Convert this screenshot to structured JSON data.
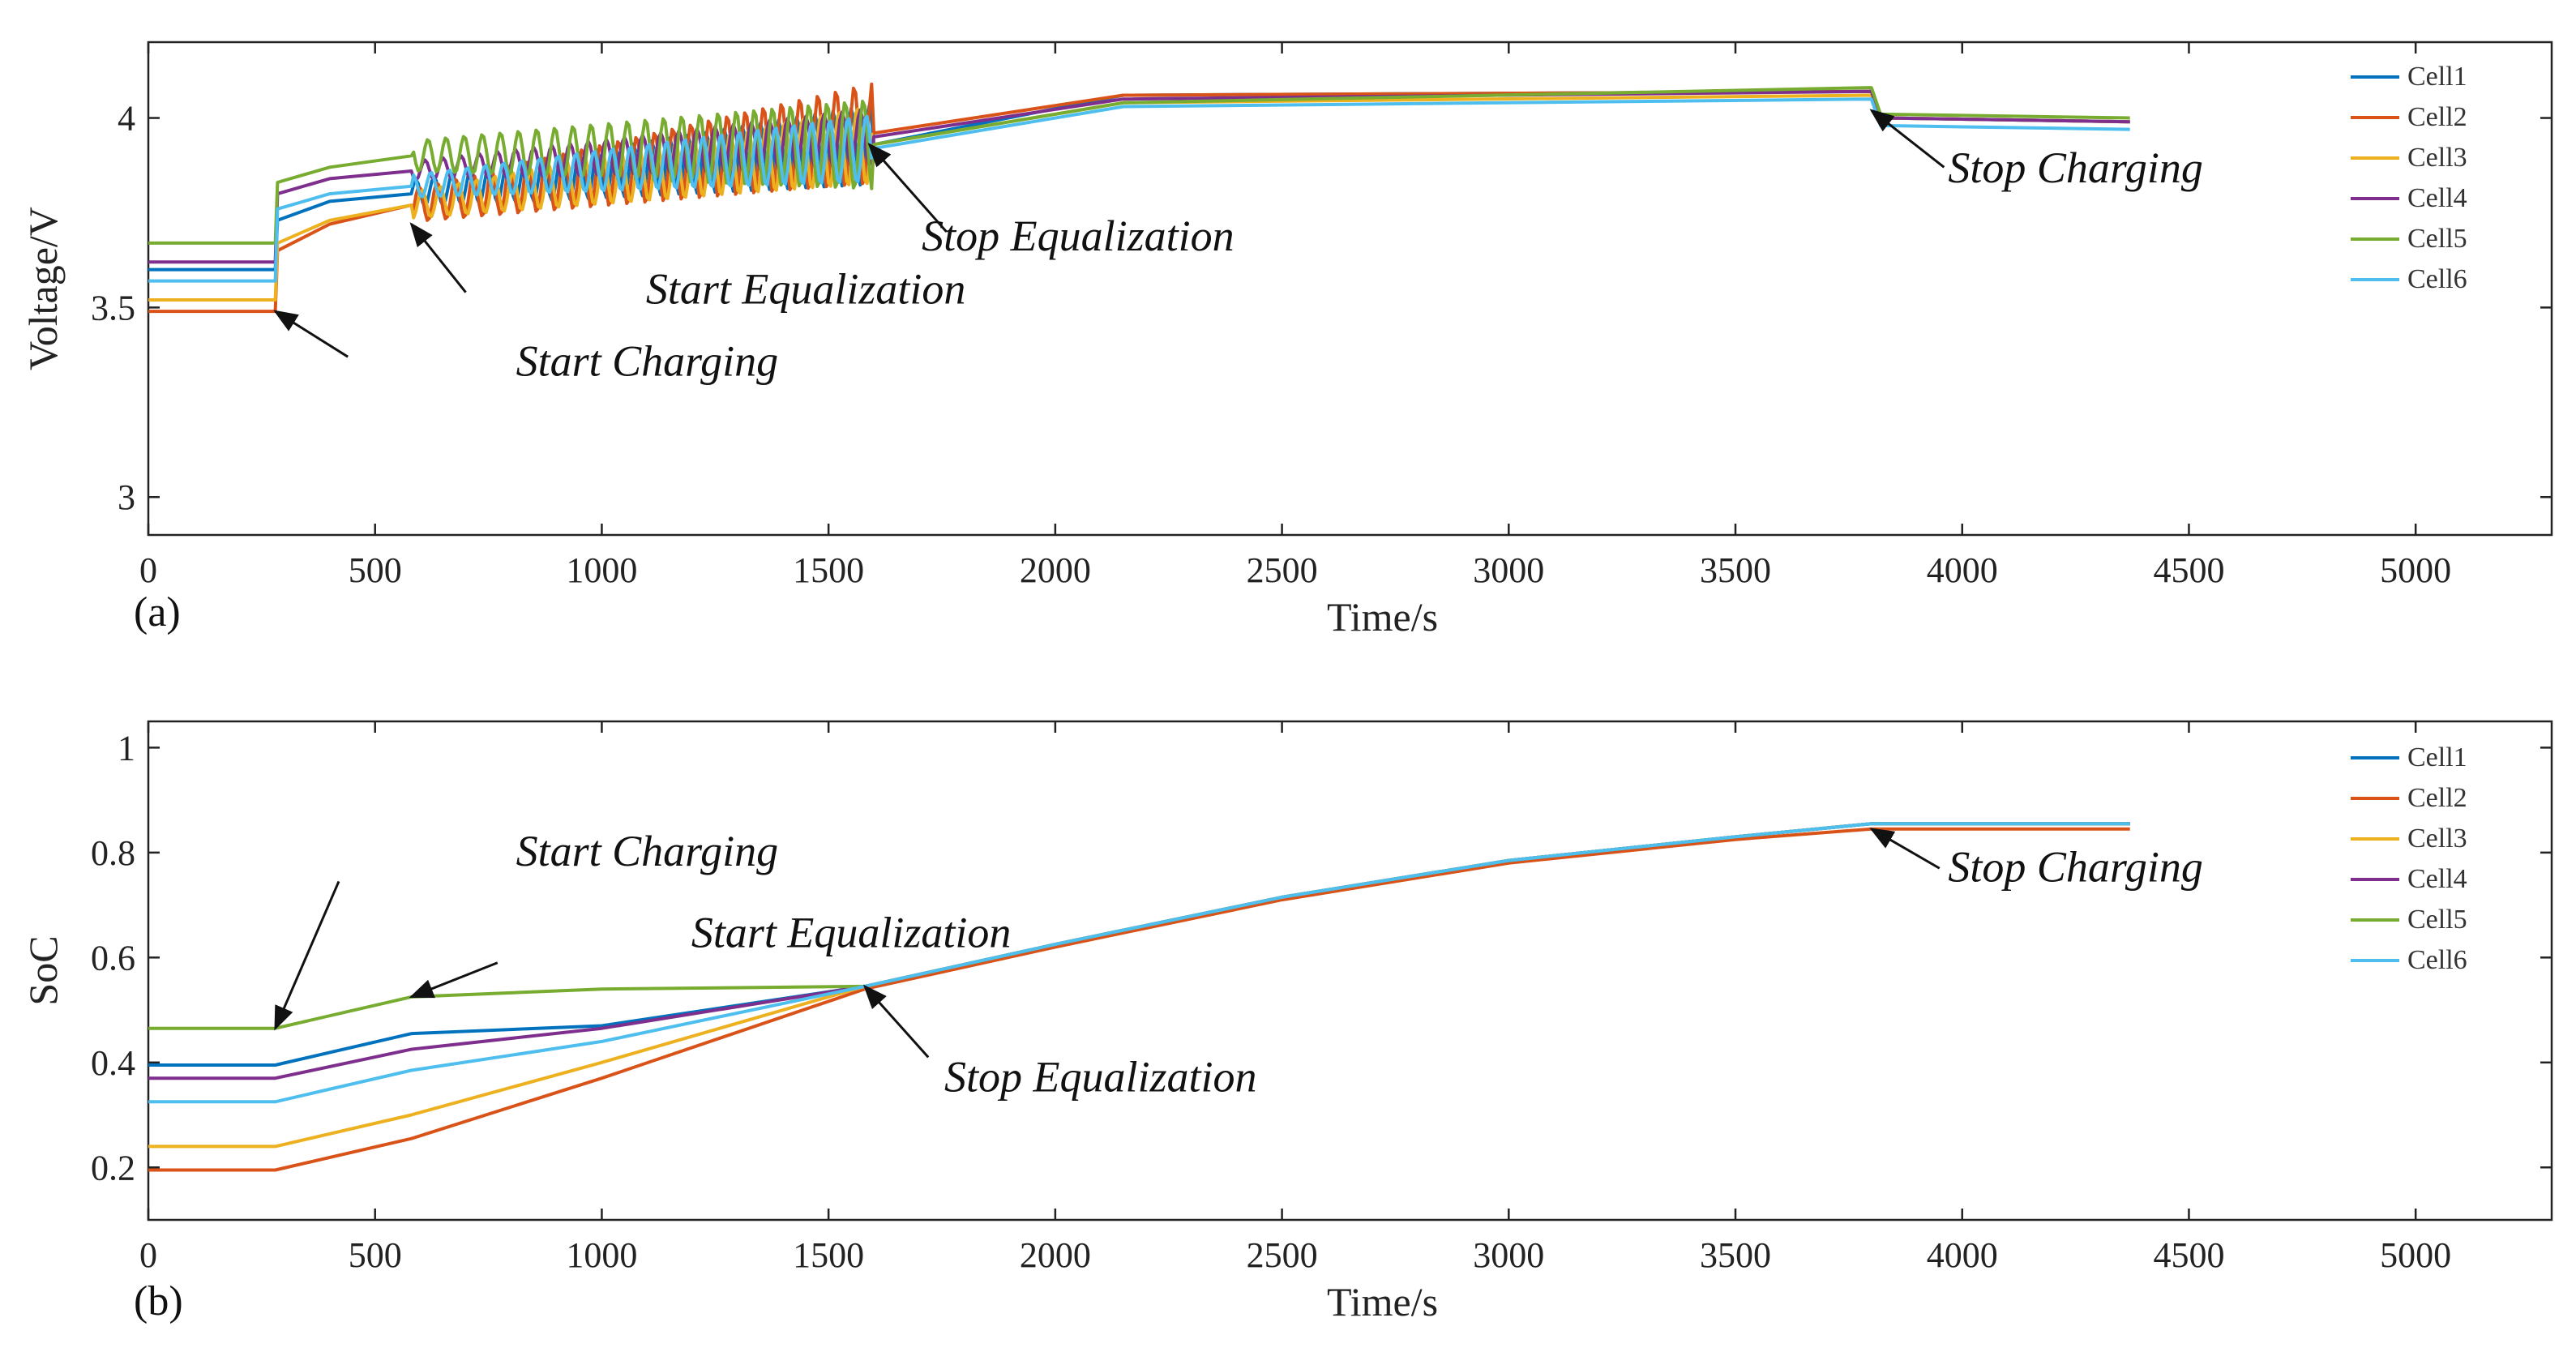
{
  "chart_data": [
    {
      "type": "line",
      "panel_label": "(a)",
      "xlabel": "Time/s",
      "ylabel": "Voltage/V",
      "xlim": [
        0,
        5300
      ],
      "ylim": [
        2.9,
        4.2
      ],
      "xticks": [
        0,
        500,
        1000,
        1500,
        2000,
        2500,
        3000,
        3500,
        4000,
        4500,
        5000
      ],
      "yticks": [
        3,
        3.5,
        4
      ],
      "ytick_labels": [
        "3",
        "3.5",
        "4"
      ],
      "legend": [
        "Cell1",
        "Cell2",
        "Cell3",
        "Cell4",
        "Cell5",
        "Cell6"
      ],
      "series": [
        {
          "name": "Cell1",
          "color": "#0072BD",
          "x": [
            0,
            280,
            285,
            400,
            580,
            1600,
            2150,
            3800,
            3820,
            4370
          ],
          "y": [
            3.6,
            3.6,
            3.73,
            3.78,
            3.8,
            3.93,
            4.06,
            4.07,
            4.0,
            3.99
          ],
          "osc": {
            "start": 580,
            "end": 1600,
            "amp": 0.07,
            "period": 40
          }
        },
        {
          "name": "Cell2",
          "color": "#D95319",
          "x": [
            0,
            280,
            285,
            400,
            580,
            1600,
            2150,
            3800,
            3820,
            4370
          ],
          "y": [
            3.49,
            3.49,
            3.65,
            3.72,
            3.77,
            3.96,
            4.06,
            4.07,
            4.0,
            3.99
          ],
          "osc": {
            "start": 580,
            "end": 1600,
            "amp": 0.09,
            "period": 40
          }
        },
        {
          "name": "Cell3",
          "color": "#EDB120",
          "x": [
            0,
            280,
            285,
            400,
            580,
            1600,
            2150,
            3800,
            3820,
            4370
          ],
          "y": [
            3.52,
            3.52,
            3.67,
            3.73,
            3.77,
            3.93,
            4.04,
            4.06,
            4.0,
            3.99
          ],
          "osc": {
            "start": 580,
            "end": 1600,
            "amp": 0.07,
            "period": 40
          }
        },
        {
          "name": "Cell4",
          "color": "#7E2F8E",
          "x": [
            0,
            280,
            285,
            400,
            580,
            1600,
            2150,
            3800,
            3820,
            4370
          ],
          "y": [
            3.62,
            3.62,
            3.8,
            3.84,
            3.86,
            3.95,
            4.05,
            4.07,
            4.0,
            3.99
          ],
          "osc": {
            "start": 580,
            "end": 1600,
            "amp": 0.05,
            "period": 40
          }
        },
        {
          "name": "Cell5",
          "color": "#77AC30",
          "x": [
            0,
            280,
            285,
            400,
            580,
            1600,
            2150,
            3800,
            3820,
            4370
          ],
          "y": [
            3.67,
            3.67,
            3.83,
            3.87,
            3.9,
            3.93,
            4.04,
            4.08,
            4.01,
            4.0
          ],
          "osc": {
            "start": 580,
            "end": 1600,
            "amp": 0.08,
            "period": 40
          }
        },
        {
          "name": "Cell6",
          "color": "#4DBEEE",
          "x": [
            0,
            280,
            285,
            400,
            580,
            1600,
            2150,
            3800,
            3820,
            4370
          ],
          "y": [
            3.57,
            3.57,
            3.76,
            3.8,
            3.82,
            3.92,
            4.03,
            4.05,
            3.98,
            3.97
          ],
          "osc": {
            "start": 580,
            "end": 1600,
            "amp": 0.06,
            "period": 40
          }
        }
      ],
      "annotations": [
        {
          "text": "Start Charging",
          "x": 1100,
          "y": 3.32,
          "tip_x": 280,
          "tip_y": 3.49,
          "tail_x": 440,
          "tail_y": 3.37
        },
        {
          "text": "Start Equalization",
          "x": 1450,
          "y": 3.51,
          "tip_x": 580,
          "tip_y": 3.72,
          "tail_x": 700,
          "tail_y": 3.54
        },
        {
          "text": "Stop Equalization",
          "x": 2050,
          "y": 3.65,
          "tip_x": 1590,
          "tip_y": 3.93,
          "tail_x": 1760,
          "tail_y": 3.7
        },
        {
          "text": "Stop Charging",
          "x": 4250,
          "y": 3.83,
          "tip_x": 3800,
          "tip_y": 4.02,
          "tail_x": 3960,
          "tail_y": 3.87
        }
      ]
    },
    {
      "type": "line",
      "panel_label": "(b)",
      "xlabel": "Time/s",
      "ylabel": "SoC",
      "xlim": [
        0,
        5300
      ],
      "ylim": [
        0.1,
        1.05
      ],
      "xticks": [
        0,
        500,
        1000,
        1500,
        2000,
        2500,
        3000,
        3500,
        4000,
        4500,
        5000
      ],
      "yticks": [
        0.2,
        0.4,
        0.6,
        0.8,
        1
      ],
      "ytick_labels": [
        "0.2",
        "0.4",
        "0.6",
        "0.8",
        "1"
      ],
      "legend": [
        "Cell1",
        "Cell2",
        "Cell3",
        "Cell4",
        "Cell5",
        "Cell6"
      ],
      "series": [
        {
          "name": "Cell1",
          "color": "#0072BD",
          "x": [
            0,
            280,
            580,
            1000,
            1580,
            2000,
            2500,
            3000,
            3500,
            3800,
            4370
          ],
          "y": [
            0.395,
            0.395,
            0.455,
            0.47,
            0.545,
            0.625,
            0.715,
            0.785,
            0.83,
            0.855,
            0.855
          ]
        },
        {
          "name": "Cell2",
          "color": "#D95319",
          "x": [
            0,
            280,
            580,
            1000,
            1580,
            2000,
            2500,
            3000,
            3500,
            3800,
            4370
          ],
          "y": [
            0.195,
            0.195,
            0.255,
            0.37,
            0.54,
            0.62,
            0.71,
            0.78,
            0.825,
            0.845,
            0.845
          ]
        },
        {
          "name": "Cell3",
          "color": "#EDB120",
          "x": [
            0,
            280,
            580,
            1000,
            1580,
            2000,
            2500,
            3000,
            3500,
            3800,
            4370
          ],
          "y": [
            0.24,
            0.24,
            0.3,
            0.4,
            0.545,
            0.625,
            0.715,
            0.785,
            0.83,
            0.855,
            0.855
          ]
        },
        {
          "name": "Cell4",
          "color": "#7E2F8E",
          "x": [
            0,
            280,
            580,
            1000,
            1580,
            2000,
            2500,
            3000,
            3500,
            3800,
            4370
          ],
          "y": [
            0.37,
            0.37,
            0.425,
            0.465,
            0.545,
            0.625,
            0.715,
            0.785,
            0.83,
            0.855,
            0.855
          ]
        },
        {
          "name": "Cell5",
          "color": "#77AC30",
          "x": [
            0,
            280,
            580,
            1000,
            1580,
            2000,
            2500,
            3000,
            3500,
            3800,
            4370
          ],
          "y": [
            0.465,
            0.465,
            0.525,
            0.54,
            0.545,
            0.625,
            0.715,
            0.785,
            0.83,
            0.855,
            0.855
          ]
        },
        {
          "name": "Cell6",
          "color": "#4DBEEE",
          "x": [
            0,
            280,
            580,
            1000,
            1580,
            2000,
            2500,
            3000,
            3500,
            3800,
            4370
          ],
          "y": [
            0.325,
            0.325,
            0.385,
            0.44,
            0.545,
            0.625,
            0.715,
            0.785,
            0.83,
            0.855,
            0.855
          ]
        }
      ],
      "annotations": [
        {
          "text": "Start Charging",
          "x": 1100,
          "y": 0.775,
          "tip_x": 280,
          "tip_y": 0.465,
          "tail_x": 420,
          "tail_y": 0.745
        },
        {
          "text": "Start Equalization",
          "x": 1550,
          "y": 0.62,
          "tip_x": 580,
          "tip_y": 0.525,
          "tail_x": 770,
          "tail_y": 0.59
        },
        {
          "text": "Stop Equalization",
          "x": 2100,
          "y": 0.345,
          "tip_x": 1580,
          "tip_y": 0.545,
          "tail_x": 1720,
          "tail_y": 0.41
        },
        {
          "text": "Stop Charging",
          "x": 4250,
          "y": 0.745,
          "tip_x": 3800,
          "tip_y": 0.845,
          "tail_x": 3950,
          "tail_y": 0.77
        }
      ]
    }
  ]
}
